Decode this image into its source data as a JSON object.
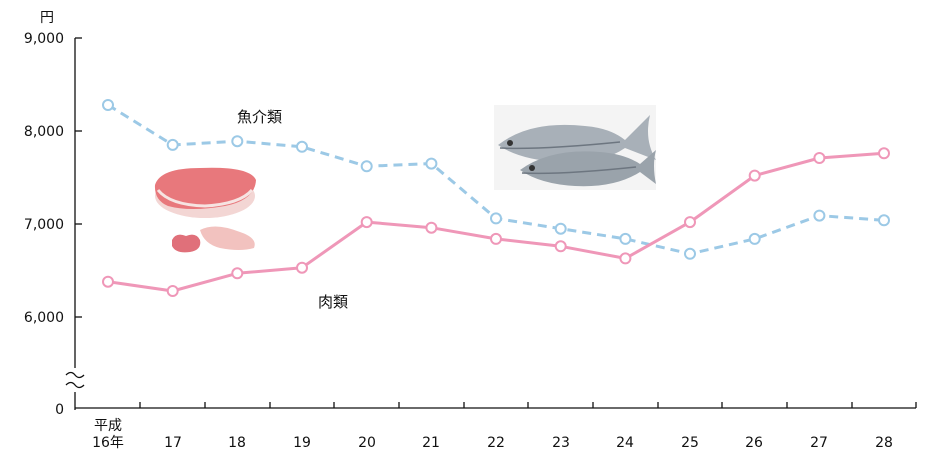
{
  "chart_data": {
    "type": "line",
    "y_unit": "円",
    "y_ticks": [
      "9,000",
      "8,000",
      "7,000",
      "6,000",
      "0"
    ],
    "y_tick_values": [
      9000,
      8000,
      7000,
      6000,
      0
    ],
    "ylim": [
      5200,
      9000
    ],
    "axis_break": true,
    "x_ticks": [
      {
        "top": "平成",
        "bottom": "16年"
      },
      {
        "top": "",
        "bottom": "17"
      },
      {
        "top": "",
        "bottom": "18"
      },
      {
        "top": "",
        "bottom": "19"
      },
      {
        "top": "",
        "bottom": "20"
      },
      {
        "top": "",
        "bottom": "21"
      },
      {
        "top": "",
        "bottom": "22"
      },
      {
        "top": "",
        "bottom": "23"
      },
      {
        "top": "",
        "bottom": "24"
      },
      {
        "top": "",
        "bottom": "25"
      },
      {
        "top": "",
        "bottom": "26"
      },
      {
        "top": "",
        "bottom": "27"
      },
      {
        "top": "",
        "bottom": "28"
      }
    ],
    "series": [
      {
        "name": "魚介類",
        "style": "dashed",
        "color": "#9cc9e6",
        "values": [
          8280,
          7850,
          7890,
          7830,
          7620,
          7650,
          7060,
          6950,
          6840,
          6680,
          6840,
          7090,
          7040
        ]
      },
      {
        "name": "肉類",
        "style": "solid",
        "color": "#ef97b8",
        "values": [
          6380,
          6280,
          6470,
          6530,
          7020,
          6960,
          6840,
          6760,
          6630,
          7020,
          7520,
          7710,
          7760
        ]
      }
    ],
    "grid": false,
    "legend": "inline labels near lines"
  },
  "illustrations": {
    "meat": "meat-illustration",
    "fish": "fish-illustration"
  }
}
